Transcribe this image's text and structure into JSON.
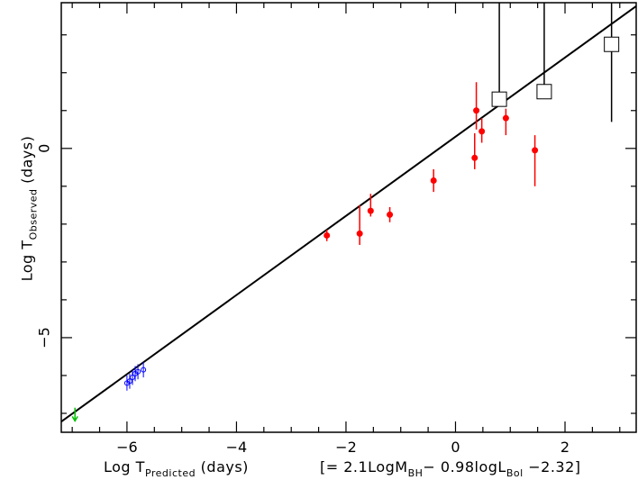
{
  "chart_data": {
    "type": "scatter",
    "xlabel": {
      "prefix": "Log T",
      "sub": "Predicted",
      "suffix": " (days)"
    },
    "ylabel": {
      "prefix": "Log T",
      "sub": "Observed",
      "suffix": " (days)"
    },
    "formula": {
      "p1": "[= 2.1LogM",
      "s1": "BH",
      "p2": "− 0.98logL",
      "s2": "Bol",
      "p3": " −2.32]"
    },
    "xlim": [
      -7.2,
      3.3
    ],
    "ylim": [
      -7.5,
      3.85
    ],
    "xticks": [
      -6,
      -4,
      -2,
      0,
      2
    ],
    "xtick_labels": [
      "−6",
      "−4",
      "−2",
      "0",
      "2"
    ],
    "yticks": [
      -5,
      0
    ],
    "ytick_labels": [
      "−5",
      "0"
    ],
    "fit_line": {
      "x": [
        -7.2,
        3.3
      ],
      "y": [
        -7.22,
        3.76
      ]
    },
    "colors": {
      "red": "#ff0000",
      "blue": "#0000ff",
      "green": "#00c000",
      "black": "#000000"
    },
    "series": [
      {
        "marker": "circle",
        "color": "red",
        "points": [
          {
            "x": -2.35,
            "y": -2.3,
            "ylo": -2.45,
            "yhi": -2.15
          },
          {
            "x": -1.75,
            "y": -2.25,
            "ylo": -2.55,
            "yhi": -1.5
          },
          {
            "x": -1.55,
            "y": -1.65,
            "ylo": -1.8,
            "yhi": -1.2
          },
          {
            "x": -1.2,
            "y": -1.75,
            "ylo": -1.95,
            "yhi": -1.55
          },
          {
            "x": -0.4,
            "y": -0.85,
            "ylo": -1.15,
            "yhi": -0.55
          },
          {
            "x": 0.35,
            "y": -0.25,
            "ylo": -0.55,
            "yhi": 0.4
          },
          {
            "x": 0.38,
            "y": 1.0,
            "ylo": 0.5,
            "yhi": 1.75
          },
          {
            "x": 0.48,
            "y": 0.45,
            "ylo": 0.15,
            "yhi": 0.8
          },
          {
            "x": 0.92,
            "y": 0.8,
            "ylo": 0.35,
            "yhi": 1.05
          },
          {
            "x": 1.45,
            "y": -0.05,
            "ylo": -1.0,
            "yhi": 0.35
          }
        ]
      },
      {
        "marker": "square",
        "color": "black",
        "points": [
          {
            "x": 0.8,
            "y": 1.3,
            "yhi": 3.85
          },
          {
            "x": 1.62,
            "y": 1.5,
            "yhi": 3.85
          },
          {
            "x": 2.85,
            "y": 2.75,
            "ylo": 0.7,
            "yhi": 3.85
          }
        ]
      },
      {
        "marker": "open-circle",
        "color": "blue",
        "points": [
          {
            "x": -6.0,
            "y": -6.2,
            "ylo": -6.4,
            "yhi": -6.0
          },
          {
            "x": -5.95,
            "y": -6.15,
            "ylo": -6.35,
            "yhi": -5.95
          },
          {
            "x": -5.9,
            "y": -6.05,
            "ylo": -6.25,
            "yhi": -5.85
          },
          {
            "x": -5.85,
            "y": -5.95,
            "ylo": -6.15,
            "yhi": -5.75
          },
          {
            "x": -5.8,
            "y": -5.9,
            "ylo": -6.1,
            "yhi": -5.7
          },
          {
            "x": -5.7,
            "y": -5.85,
            "ylo": -6.05,
            "yhi": -5.65
          }
        ]
      },
      {
        "marker": "arrow-down",
        "color": "green",
        "points": [
          {
            "x": -6.95,
            "y": -7.2,
            "yhi": -6.85
          }
        ]
      }
    ]
  }
}
